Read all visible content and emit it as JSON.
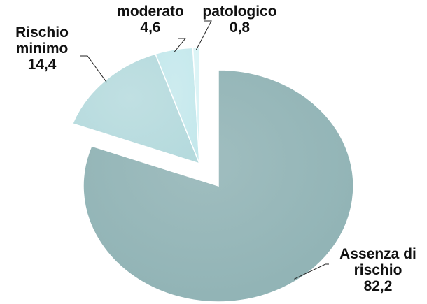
{
  "chart_data": {
    "type": "pie",
    "categories": [
      "Assenza di rischio",
      "Rischio minimo",
      "moderato",
      "patologico"
    ],
    "values": [
      82.2,
      14.4,
      4.6,
      0.8
    ],
    "value_labels": [
      "82,2",
      "14,4",
      "4,6",
      "0,8"
    ],
    "colors": [
      "#8fb2b4",
      "#b5dadd",
      "#c4e8ec",
      "#d9f3f5"
    ]
  }
}
